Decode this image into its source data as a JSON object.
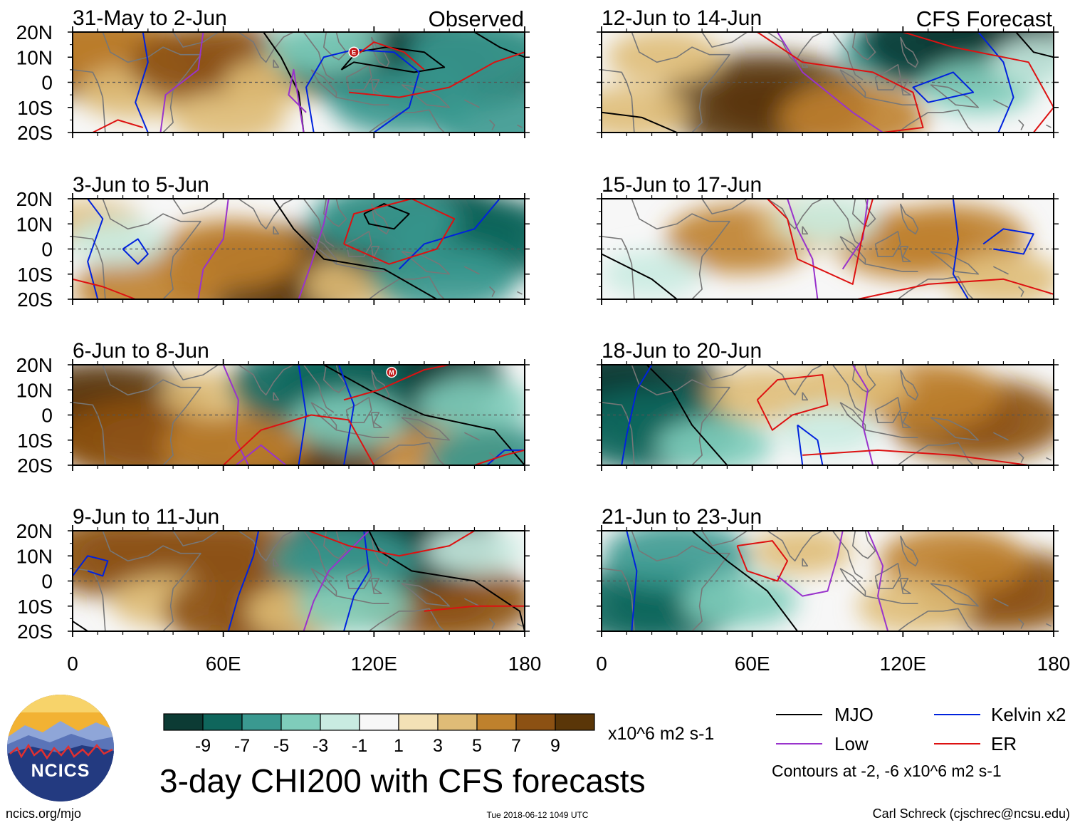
{
  "figure": {
    "title": "3-day CHI200 with CFS forecasts",
    "observed_label": "Observed",
    "forecast_label": "CFS Forecast",
    "units": "x10^6 m2 s-1",
    "website": "ncics.org/mjo",
    "timestamp": "Tue 2018-06-12 1049 UTC",
    "author": "Carl Schreck (cjschrec@ncsu.edu)",
    "logo_text": "NCICS",
    "contour_note": "Contours at -2, -6 x10^6 m2 s-1"
  },
  "colors": {
    "mjo": "#000000",
    "low": "#9933cc",
    "kelvin": "#0022dd",
    "er": "#dd1111",
    "land": "#777777"
  },
  "colorbar": {
    "ticks": [
      "-9",
      "-7",
      "-5",
      "-3",
      "-1",
      "1",
      "3",
      "5",
      "7",
      "9"
    ],
    "colors": [
      "#0c3b34",
      "#0f665c",
      "#3a9990",
      "#7fcdbb",
      "#c9ebe1",
      "#f7f7f7",
      "#f3e1b6",
      "#dfbc77",
      "#bf812d",
      "#8c5113",
      "#5a3608"
    ]
  },
  "legend": [
    {
      "label": "MJO",
      "key": "mjo"
    },
    {
      "label": "Kelvin x2",
      "key": "kelvin"
    },
    {
      "label": "Low",
      "key": "low"
    },
    {
      "label": "ER",
      "key": "er"
    }
  ],
  "chart_data": {
    "type": "heatmap",
    "variable": "CHI200 anomaly",
    "xlabel": "",
    "ylabel": "",
    "xlim": [
      0,
      180
    ],
    "ylim": [
      -20,
      20
    ],
    "x_tick_labels": [
      "0",
      "60E",
      "120E",
      "180"
    ],
    "y_tick_labels": [
      "20N",
      "10N",
      "0",
      "10S",
      "20S"
    ],
    "panels": [
      {
        "col": 0,
        "row": 0,
        "title": "31-May to 2-Jun",
        "source": "observed",
        "anomalies": [
          {
            "lon": 4,
            "lat": 10,
            "value": 7
          },
          {
            "lon": 15,
            "lat": 14,
            "value": 5
          },
          {
            "lon": 25,
            "lat": -4,
            "value": 3
          },
          {
            "lon": 58,
            "lat": 7,
            "value": 7
          },
          {
            "lon": 62,
            "lat": -14,
            "value": 3
          },
          {
            "lon": 80,
            "lat": 0,
            "value": 2
          },
          {
            "lon": 118,
            "lat": 8,
            "value": -7
          },
          {
            "lon": 148,
            "lat": 7,
            "value": -9
          },
          {
            "lon": 132,
            "lat": -8,
            "value": -5
          },
          {
            "lon": 163,
            "lat": 12,
            "value": -5
          },
          {
            "lon": 172,
            "lat": -16,
            "value": -5
          },
          {
            "lon": 100,
            "lat": 14,
            "value": -3
          }
        ],
        "markers": [
          {
            "lon": 112,
            "lat": 12,
            "label": "E"
          }
        ]
      },
      {
        "col": 0,
        "row": 1,
        "title": "3-Jun to 5-Jun",
        "source": "observed",
        "anomalies": [
          {
            "lon": 80,
            "lat": -10,
            "value": 9
          },
          {
            "lon": 62,
            "lat": -2,
            "value": 5
          },
          {
            "lon": 30,
            "lat": -16,
            "value": 5
          },
          {
            "lon": 8,
            "lat": 10,
            "value": 2
          },
          {
            "lon": 115,
            "lat": -14,
            "value": 3
          },
          {
            "lon": 140,
            "lat": 7,
            "value": -9
          },
          {
            "lon": 163,
            "lat": 4,
            "value": -7
          },
          {
            "lon": 148,
            "lat": -12,
            "value": -5
          },
          {
            "lon": 124,
            "lat": 12,
            "value": -5
          },
          {
            "lon": 18,
            "lat": 3,
            "value": -2
          }
        ],
        "markers": []
      },
      {
        "col": 0,
        "row": 2,
        "title": "6-Jun to 8-Jun",
        "source": "observed",
        "anomalies": [
          {
            "lon": 12,
            "lat": 2,
            "value": 9
          },
          {
            "lon": 28,
            "lat": -10,
            "value": 7
          },
          {
            "lon": 85,
            "lat": -16,
            "value": 9
          },
          {
            "lon": 65,
            "lat": -12,
            "value": 5
          },
          {
            "lon": 150,
            "lat": -14,
            "value": 5
          },
          {
            "lon": 55,
            "lat": 8,
            "value": 2
          },
          {
            "lon": 130,
            "lat": 14,
            "value": -9
          },
          {
            "lon": 98,
            "lat": 12,
            "value": -7
          },
          {
            "lon": 110,
            "lat": -2,
            "value": -3
          },
          {
            "lon": 160,
            "lat": 4,
            "value": -3
          },
          {
            "lon": 170,
            "lat": -18,
            "value": -5
          }
        ],
        "markers": [
          {
            "lon": 127,
            "lat": 17,
            "label": "M"
          }
        ]
      },
      {
        "col": 0,
        "row": 3,
        "title": "9-Jun to 11-Jun",
        "source": "observed",
        "anomalies": [
          {
            "lon": 20,
            "lat": 10,
            "value": 7
          },
          {
            "lon": 60,
            "lat": 10,
            "value": 7
          },
          {
            "lon": 38,
            "lat": -8,
            "value": 3
          },
          {
            "lon": 72,
            "lat": -12,
            "value": 7
          },
          {
            "lon": 92,
            "lat": -12,
            "value": 3
          },
          {
            "lon": 148,
            "lat": -8,
            "value": 7
          },
          {
            "lon": 128,
            "lat": 16,
            "value": -9
          },
          {
            "lon": 108,
            "lat": 8,
            "value": -5
          },
          {
            "lon": 112,
            "lat": -10,
            "value": -3
          },
          {
            "lon": 160,
            "lat": 12,
            "value": -2
          }
        ],
        "markers": []
      },
      {
        "col": 1,
        "row": 0,
        "title": "12-Jun to 14-Jun",
        "source": "forecast",
        "anomalies": [
          {
            "lon": 65,
            "lat": -8,
            "value": 9
          },
          {
            "lon": 25,
            "lat": 10,
            "value": 3
          },
          {
            "lon": 100,
            "lat": -14,
            "value": 5
          },
          {
            "lon": 12,
            "lat": -12,
            "value": 3
          },
          {
            "lon": 125,
            "lat": 12,
            "value": -5
          },
          {
            "lon": 145,
            "lat": 16,
            "value": -9
          },
          {
            "lon": 150,
            "lat": -2,
            "value": -3
          },
          {
            "lon": 175,
            "lat": 8,
            "value": -2
          }
        ],
        "markers": []
      },
      {
        "col": 1,
        "row": 1,
        "title": "15-Jun to 17-Jun",
        "source": "forecast",
        "anomalies": [
          {
            "lon": 55,
            "lat": 4,
            "value": 5
          },
          {
            "lon": 122,
            "lat": 2,
            "value": 5
          },
          {
            "lon": 140,
            "lat": 4,
            "value": 5
          },
          {
            "lon": 85,
            "lat": 10,
            "value": 3
          },
          {
            "lon": 160,
            "lat": -12,
            "value": 3
          },
          {
            "lon": 20,
            "lat": -10,
            "value": -2
          },
          {
            "lon": 90,
            "lat": 12,
            "value": -2
          }
        ],
        "markers": []
      },
      {
        "col": 1,
        "row": 2,
        "title": "18-Jun to 20-Jun",
        "source": "forecast",
        "anomalies": [
          {
            "lon": 8,
            "lat": 10,
            "value": -9
          },
          {
            "lon": 20,
            "lat": -6,
            "value": -7
          },
          {
            "lon": 45,
            "lat": -12,
            "value": -3
          },
          {
            "lon": 150,
            "lat": -2,
            "value": 7
          },
          {
            "lon": 130,
            "lat": 8,
            "value": 5
          },
          {
            "lon": 65,
            "lat": 8,
            "value": 3
          },
          {
            "lon": 100,
            "lat": 12,
            "value": 3
          },
          {
            "lon": 90,
            "lat": -6,
            "value": -2
          }
        ],
        "markers": []
      },
      {
        "col": 1,
        "row": 3,
        "title": "21-Jun to 23-Jun",
        "source": "forecast",
        "anomalies": [
          {
            "lon": 20,
            "lat": -10,
            "value": -7
          },
          {
            "lon": 30,
            "lat": 10,
            "value": -5
          },
          {
            "lon": 55,
            "lat": -8,
            "value": -3
          },
          {
            "lon": 160,
            "lat": -4,
            "value": 7
          },
          {
            "lon": 140,
            "lat": 8,
            "value": 5
          },
          {
            "lon": 125,
            "lat": -10,
            "value": 3
          },
          {
            "lon": 80,
            "lat": 12,
            "value": 2
          }
        ],
        "markers": []
      }
    ]
  }
}
